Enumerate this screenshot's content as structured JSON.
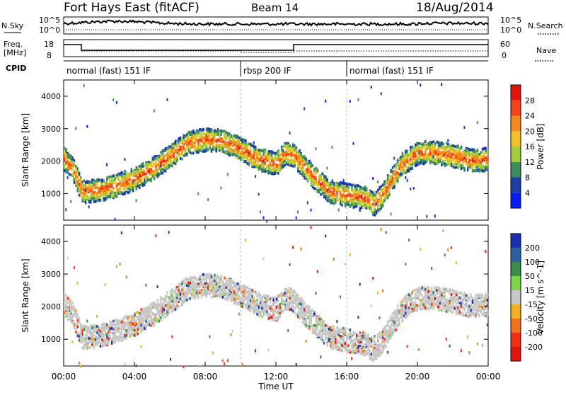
{
  "header": {
    "title": "Fort Hays East (fitACF)",
    "beam": "Beam 14",
    "date": "18/Aug/2014"
  },
  "noise_panel": {
    "left_label": "N.Sky",
    "left_ticks": [
      "10^5",
      "10^0"
    ],
    "right_label": "N.Search",
    "right_ticks": [
      "10^5",
      "10^0"
    ]
  },
  "freq_panel": {
    "left_label_line1": "Freq.",
    "left_label_line2": "[MHz]",
    "left_ticks": [
      "18",
      "8"
    ],
    "right_label": "Nave",
    "right_ticks": [
      "60",
      "0"
    ]
  },
  "cpid": {
    "label": "CPID",
    "segments": [
      {
        "name": "normal (fast) 151 IF",
        "start_hour": 0,
        "end_hour": 10
      },
      {
        "name": "rbsp 200 IF",
        "start_hour": 10,
        "end_hour": 16
      },
      {
        "name": "normal (fast) 151 IF",
        "start_hour": 16,
        "end_hour": 24
      }
    ]
  },
  "x_axis": {
    "label": "Time UT",
    "ticks": [
      "00:00",
      "04:00",
      "08:00",
      "12:00",
      "16:00",
      "20:00",
      "00:00"
    ]
  },
  "chart_data": [
    {
      "type": "heatmap",
      "name": "power",
      "ylabel": "Slant Range [km]",
      "yticks": [
        1000,
        2000,
        3000,
        4000
      ],
      "ylim": [
        180,
        4500
      ],
      "xlim_hours": [
        0,
        24
      ],
      "colorbar": {
        "label": "Power [dB]",
        "ticks": [
          "4",
          "8",
          "12",
          "16",
          "20",
          "24",
          "28"
        ],
        "colors": [
          "#0a1bf2",
          "#1e3fa8",
          "#3c8c5e",
          "#9fce3a",
          "#f2c326",
          "#f28a1c",
          "#f24418",
          "#e0140c"
        ]
      },
      "echo_band_center_km": {
        "hours": [
          0,
          0.5,
          1,
          2,
          3,
          4,
          5,
          6,
          7,
          8,
          9,
          10,
          11,
          12,
          12.5,
          13,
          14,
          15,
          16,
          17,
          17.5,
          18,
          19,
          20,
          21,
          22,
          23,
          24
        ],
        "range_km": [
          2100,
          1800,
          1100,
          1150,
          1300,
          1500,
          1800,
          2200,
          2600,
          2700,
          2650,
          2400,
          2100,
          1950,
          2300,
          2200,
          1600,
          1100,
          1000,
          900,
          700,
          1000,
          1900,
          2300,
          2300,
          2200,
          2050,
          2100
        ]
      }
    },
    {
      "type": "heatmap",
      "name": "velocity",
      "ylabel": "Slant Range [km]",
      "yticks": [
        1000,
        2000,
        3000,
        4000
      ],
      "ylim": [
        180,
        4500
      ],
      "xlim_hours": [
        0,
        24
      ],
      "colorbar": {
        "label": "Velocity [m s^-1]",
        "ticks": [
          "200",
          "100",
          "50",
          "15",
          "-15",
          "-50",
          "-100",
          "-200"
        ],
        "colors": [
          "#1a2fb4",
          "#2c5fa0",
          "#3e8a4a",
          "#7cd44c",
          "#c8c8c8",
          "#f2b020",
          "#f2741a",
          "#ef3016",
          "#e0140c"
        ]
      }
    }
  ]
}
